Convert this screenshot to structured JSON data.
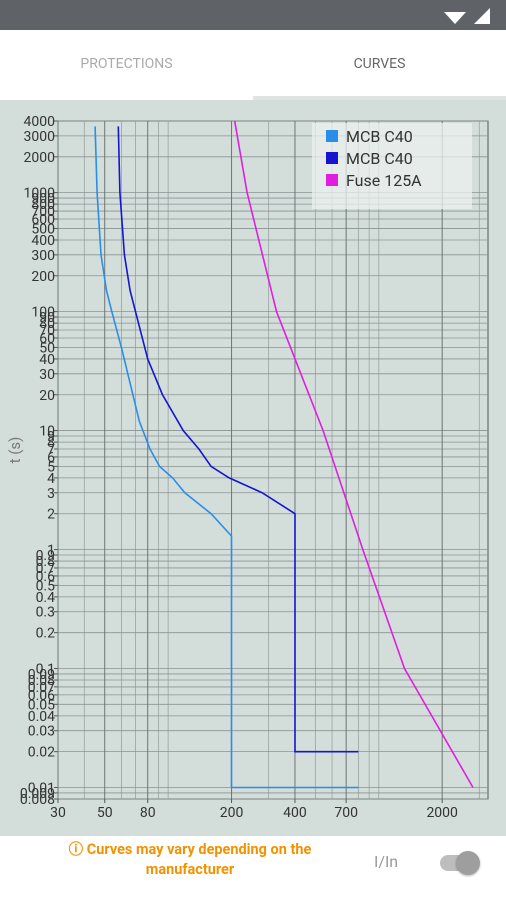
{
  "tabs": [
    "PROTECTIONS",
    "CURVES"
  ],
  "footer": {
    "notice": "ⓘ Curves may vary depending on the manufacturer",
    "toggle_label": "I/In"
  },
  "chart_data": {
    "type": "line",
    "y_label": "t (s)",
    "xscale": "log",
    "yscale": "log",
    "grid": true,
    "legend": "top-right",
    "xlim": [
      30,
      3300
    ],
    "ylim": [
      0.008,
      4000
    ],
    "xticks": [
      30,
      50,
      80,
      200,
      400,
      700,
      2000
    ],
    "minor_xticks": [
      40,
      60,
      70,
      90,
      100,
      300,
      500,
      600,
      800,
      900,
      1000,
      3000
    ],
    "yticks": [
      4000,
      3000,
      2000,
      1000,
      900,
      800,
      700,
      600,
      500,
      400,
      300,
      200,
      100,
      90,
      80,
      70,
      60,
      50,
      40,
      30,
      20,
      10,
      9,
      8,
      7,
      6,
      5,
      4,
      3,
      2,
      1,
      0.9,
      0.8,
      0.7,
      0.6,
      0.5,
      0.4,
      0.3,
      0.2,
      0.1,
      0.09,
      0.08,
      0.07,
      0.06,
      0.05,
      0.04,
      0.03,
      0.02,
      0.01,
      0.009,
      0.008
    ],
    "series": [
      {
        "name": "MCB C40",
        "color": "#2a8ee8",
        "x": [
          45,
          46,
          48,
          51,
          54,
          60,
          66,
          73,
          82,
          91,
          105,
          120,
          160,
          200,
          200,
          800
        ],
        "values": [
          3600,
          1000,
          300,
          150,
          100,
          50,
          25,
          12,
          7,
          5,
          4,
          3,
          2,
          1.3,
          0.01,
          0.01
        ]
      },
      {
        "name": "MCB C40",
        "color": "#1515d0",
        "x": [
          58,
          59,
          62,
          66,
          70,
          80,
          94,
          118,
          140,
          160,
          195,
          280,
          400,
          400,
          800
        ],
        "values": [
          3600,
          1000,
          300,
          150,
          100,
          40,
          20,
          10,
          7,
          5,
          4,
          3,
          2,
          0.02,
          0.02
        ]
      },
      {
        "name": "Fuse 125A",
        "color": "#e01ee0",
        "x": [
          207,
          237,
          327,
          544,
          840,
          1325,
          2800
        ],
        "values": [
          4000,
          1000,
          100,
          10,
          1,
          0.1,
          0.01
        ]
      }
    ]
  }
}
